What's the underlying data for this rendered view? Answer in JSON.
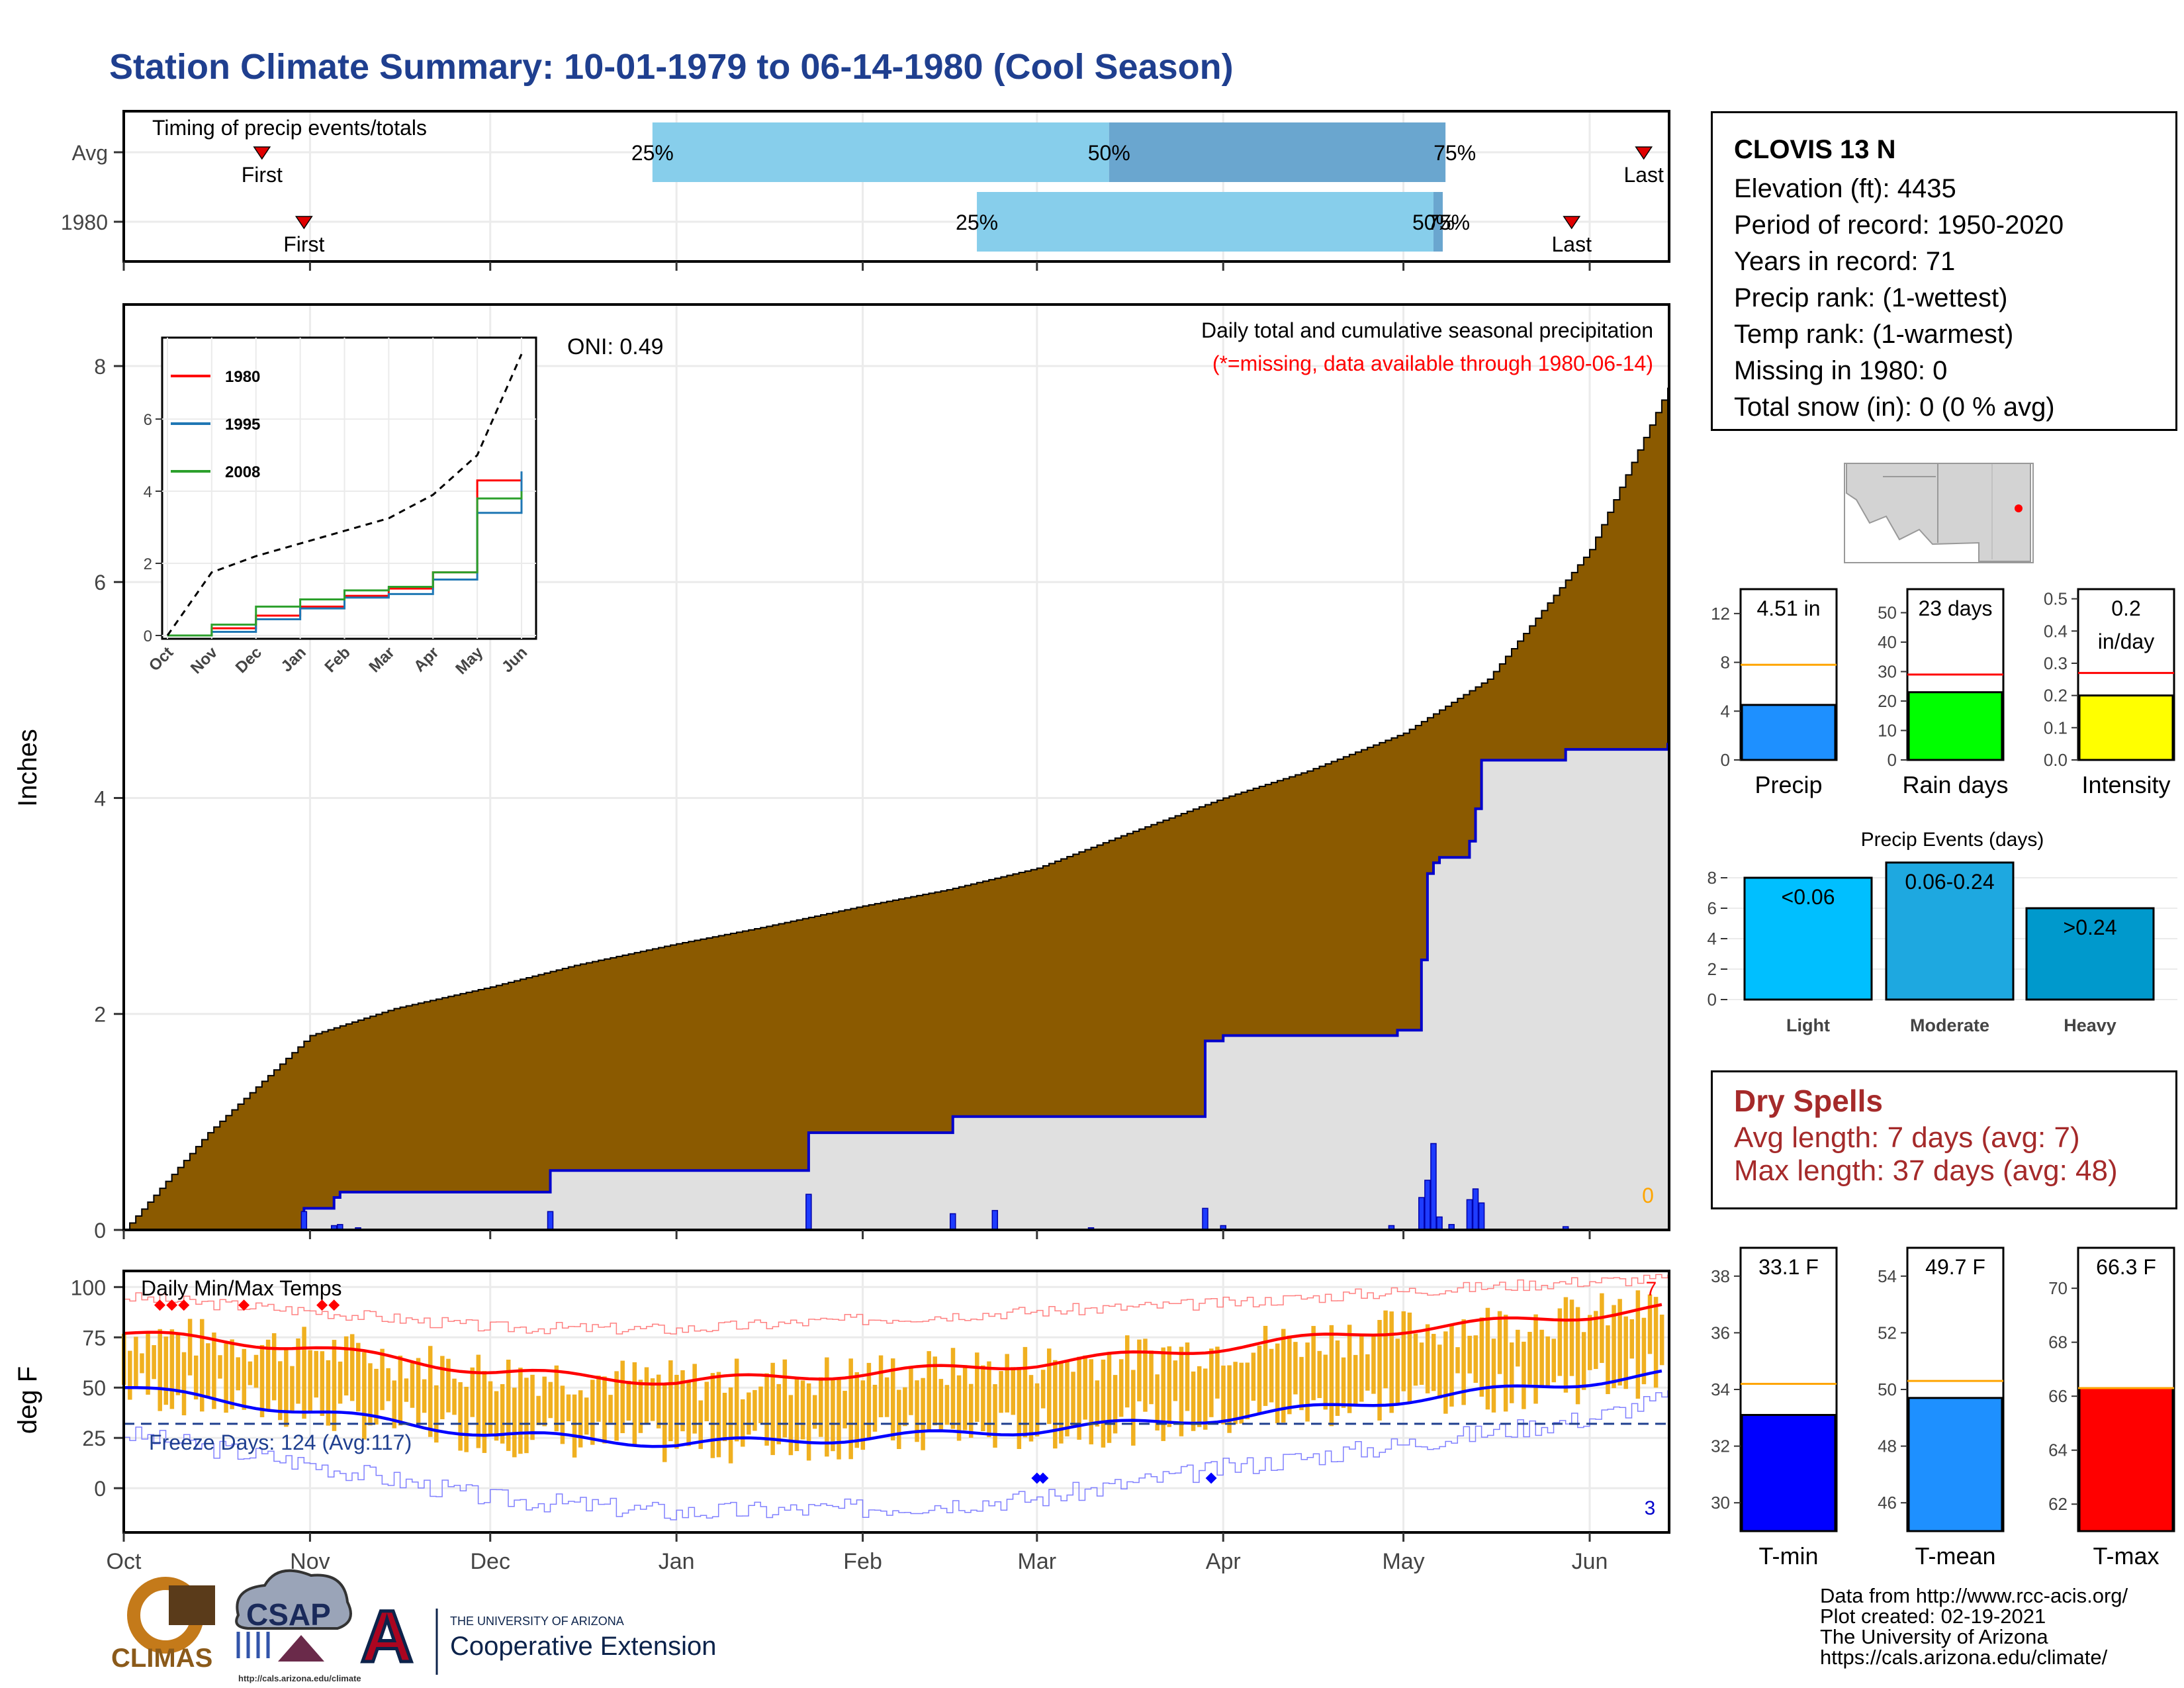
{
  "title": "Station Climate Summary: 10-01-1979 to 06-14-1980 (Cool Season)",
  "station": {
    "name": "CLOVIS 13 N",
    "lines": [
      "Elevation (ft): 4435",
      "Period of record: 1950-2020",
      "Years in record: 71",
      "Precip rank:  (1-wettest)",
      "Temp rank:  (1-warmest)",
      "Missing in 1980: 0",
      "Total snow (in): 0 (0 % avg)"
    ]
  },
  "timing_panel": {
    "label": "Timing of precip events/totals",
    "rows": [
      {
        "name": "Avg",
        "first": "First",
        "last": "Last",
        "p25": "25%",
        "p50": "50%",
        "p75": "75%"
      },
      {
        "name": "1980",
        "first": "First",
        "last": "Last",
        "p25": "25%",
        "p50": "50%",
        "p75": "75%"
      }
    ]
  },
  "main_panel": {
    "ylabel": "Inches",
    "subtitle": "Daily total and cumulative seasonal precipitation",
    "missing_note": "(*=missing, data available through 1980-06-14)",
    "oni": "ONI: 0.49",
    "zero_label": "0"
  },
  "inset": {
    "legend": [
      "1980",
      "1995",
      "2008"
    ],
    "yticks": [
      "0",
      "2",
      "4",
      "6"
    ],
    "xticks": [
      "Oct",
      "Nov",
      "Dec",
      "Jan",
      "Feb",
      "Mar",
      "Apr",
      "May",
      "Jun"
    ]
  },
  "temp_panel": {
    "ylabel": "deg F",
    "label": "Daily Min/Max Temps",
    "freeze": "Freeze Days: 124 (Avg:117)",
    "count_hot": "7",
    "count_cold": "3",
    "yticks": [
      "0",
      "25",
      "50",
      "75",
      "100"
    ]
  },
  "months": [
    "Oct",
    "Nov",
    "Dec",
    "Jan",
    "Feb",
    "Mar",
    "Apr",
    "May",
    "Jun"
  ],
  "precip_event_title": "Precip Events (days)",
  "dry_spells": {
    "title": "Dry Spells",
    "avg": "Avg length: 7 days (avg: 7)",
    "max": "Max length: 37 days (avg: 48)"
  },
  "credits": [
    "Data from http://www.rcc-acis.org/",
    "Plot created: 02-19-2021",
    "The University of Arizona",
    "https://cals.arizona.edu/climate/"
  ],
  "logos": {
    "climas": "CLIMAS",
    "csap": "CSAP",
    "csap_url": "http://cals.arizona.edu/climate",
    "ua_small": "THE UNIVERSITY OF ARIZONA",
    "ua_big": "Cooperative Extension",
    "ua_letter": "A"
  },
  "colors": {
    "title": "#1f3f8f",
    "cumulative_avg": "#8b5a00",
    "cumulative_year": "#0000cc",
    "bar_fill": "#87ceeb",
    "bar_mid": "#6aa6cf",
    "temp_range": "#f0b020",
    "tmax_line": "#ff0000",
    "tmin_line": "#0000ff",
    "precip_bar": "#1e90ff",
    "raindays_bar": "#00ff00",
    "intensity_bar": "#ffff00",
    "tmin_bar": "#0000ff",
    "tmean_bar": "#1e90ff",
    "tmax_bar": "#ff0000"
  },
  "chart_data": [
    {
      "type": "bar",
      "name": "timing",
      "rows": [
        {
          "name": "Avg",
          "first": "1979-10-24",
          "p25": "1979-12-28",
          "p50": "1980-03-13",
          "p75": "1980-05-08",
          "last": "1980-06-10"
        },
        {
          "name": "1980",
          "first": "1979-10-31",
          "p25": "1980-02-20",
          "p50": "1980-05-06",
          "p75": "1980-05-07",
          "last": "1980-05-29"
        }
      ]
    },
    {
      "type": "area",
      "name": "cumulative",
      "ylabel": "Inches",
      "ylim": [
        0,
        8.5
      ],
      "yticks": [
        0,
        2,
        4,
        6,
        8
      ],
      "avg_cumulative": {
        "x": [
          "1979-10-01",
          "1979-10-15",
          "1979-11-01",
          "1979-11-15",
          "1979-12-01",
          "1979-12-15",
          "1980-01-01",
          "1980-01-15",
          "1980-02-01",
          "1980-02-15",
          "1980-03-01",
          "1980-03-15",
          "1980-04-01",
          "1980-04-15",
          "1980-05-01",
          "1980-05-15",
          "1980-06-01",
          "1980-06-14"
        ],
        "y": [
          0.0,
          0.9,
          1.8,
          2.05,
          2.25,
          2.45,
          2.65,
          2.8,
          3.0,
          3.15,
          3.35,
          3.65,
          4.0,
          4.25,
          4.6,
          5.1,
          6.3,
          7.8
        ]
      },
      "year_cumulative": {
        "x": [
          "1979-10-01",
          "1979-10-31",
          "1979-11-05",
          "1979-11-06",
          "1979-12-11",
          "1980-01-23",
          "1980-02-16",
          "1980-02-23",
          "1980-03-29",
          "1980-04-01",
          "1980-04-30",
          "1980-05-04",
          "1980-05-05",
          "1980-05-06",
          "1980-05-07",
          "1980-05-12",
          "1980-05-13",
          "1980-05-14",
          "1980-05-28",
          "1980-06-14"
        ],
        "y": [
          0.0,
          0.2,
          0.3,
          0.35,
          0.55,
          0.9,
          1.05,
          1.05,
          1.75,
          1.8,
          1.85,
          2.5,
          3.3,
          3.4,
          3.45,
          3.6,
          3.9,
          4.35,
          4.45,
          4.51
        ]
      },
      "daily_precip": {
        "x": [
          "1979-10-31",
          "1979-11-05",
          "1979-11-06",
          "1979-11-09",
          "1979-12-11",
          "1980-01-23",
          "1980-02-16",
          "1980-02-23",
          "1980-03-10",
          "1980-03-29",
          "1980-04-01",
          "1980-04-29",
          "1980-05-04",
          "1980-05-05",
          "1980-05-06",
          "1980-05-07",
          "1980-05-09",
          "1980-05-12",
          "1980-05-13",
          "1980-05-14",
          "1980-05-28"
        ],
        "y": [
          0.17,
          0.04,
          0.05,
          0.02,
          0.17,
          0.33,
          0.15,
          0.18,
          0.02,
          0.2,
          0.04,
          0.04,
          0.3,
          0.46,
          0.8,
          0.12,
          0.05,
          0.28,
          0.38,
          0.25,
          0.03
        ]
      }
    },
    {
      "type": "line",
      "name": "inset_cumulative",
      "legend": [
        "1980",
        "1995",
        "2008"
      ],
      "ylim": [
        0,
        7.8
      ],
      "x": [
        "Oct",
        "Nov",
        "Dec",
        "Jan",
        "Feb",
        "Mar",
        "Apr",
        "May",
        "Jun"
      ],
      "series": [
        {
          "name": "1980",
          "values": [
            0.0,
            0.2,
            0.55,
            0.8,
            1.1,
            1.3,
            1.75,
            4.3,
            4.51
          ]
        },
        {
          "name": "1995",
          "values": [
            0.0,
            0.1,
            0.45,
            0.75,
            1.05,
            1.15,
            1.55,
            3.4,
            4.55
          ]
        },
        {
          "name": "2008",
          "values": [
            0.0,
            0.3,
            0.8,
            1.0,
            1.25,
            1.35,
            1.75,
            3.8,
            4.0
          ]
        }
      ],
      "avg": [
        0.0,
        1.75,
        2.2,
        2.55,
        2.9,
        3.25,
        3.9,
        5.0,
        7.8
      ]
    },
    {
      "type": "line",
      "name": "daily_temps",
      "ylabel": "deg F",
      "ylim": [
        -20,
        105
      ],
      "yticks": [
        0,
        25,
        50,
        75,
        100
      ],
      "x": [
        "1979-10-01",
        "1979-11-01",
        "1979-12-01",
        "1980-01-01",
        "1980-02-01",
        "1980-03-01",
        "1980-04-01",
        "1980-05-01",
        "1980-06-01",
        "1980-06-14"
      ],
      "series": [
        {
          "name": "avg_tmax",
          "values": [
            77,
            70,
            58,
            53,
            57,
            62,
            70,
            79,
            86,
            90
          ]
        },
        {
          "name": "avg_tmin",
          "values": [
            50,
            38,
            27,
            22,
            25,
            29,
            35,
            44,
            53,
            57
          ]
        },
        {
          "name": "record_max",
          "values": [
            95,
            88,
            80,
            79,
            84,
            88,
            92,
            98,
            103,
            104
          ]
        },
        {
          "name": "record_min",
          "values": [
            27,
            12,
            -5,
            -12,
            -10,
            -5,
            10,
            22,
            35,
            45
          ]
        }
      ],
      "freeze_threshold": 32
    },
    {
      "type": "bar",
      "name": "precip_summary",
      "categories": [
        "Precip",
        "Rain days",
        "Intensity"
      ],
      "values": [
        4.51,
        23,
        0.2
      ],
      "averages": [
        7.8,
        29,
        0.27
      ],
      "labels": [
        "4.51 in",
        "23 days",
        "0.2 in/day"
      ],
      "ylims": [
        [
          0,
          14
        ],
        [
          0,
          58
        ],
        [
          0,
          0.53
        ]
      ],
      "yticks": [
        [
          "0",
          "4",
          "8",
          "12"
        ],
        [
          "0",
          "10",
          "20",
          "30",
          "40",
          "50"
        ],
        [
          "0.0",
          "0.1",
          "0.2",
          "0.3",
          "0.4",
          "0.5"
        ]
      ]
    },
    {
      "type": "bar",
      "name": "precip_events",
      "title": "Precip Events (days)",
      "categories": [
        "Light",
        "Moderate",
        "Heavy"
      ],
      "values": [
        8,
        9,
        6
      ],
      "labels": [
        "<0.06",
        "0.06-0.24",
        ">0.24"
      ],
      "yticks": [
        "0",
        "2",
        "4",
        "6",
        "8"
      ],
      "ylim": [
        0,
        9
      ]
    },
    {
      "type": "bar",
      "name": "temp_summary",
      "categories": [
        "T-min",
        "T-mean",
        "T-max"
      ],
      "values": [
        33.1,
        49.7,
        66.3
      ],
      "averages": [
        34.2,
        50.3,
        66.3
      ],
      "labels": [
        "33.1 F",
        "49.7 F",
        "66.3 F"
      ],
      "ylims": [
        [
          29,
          39
        ],
        [
          45,
          55
        ],
        [
          61,
          71.5
        ]
      ],
      "yticks": [
        [
          "30",
          "32",
          "34",
          "36",
          "38"
        ],
        [
          "46",
          "48",
          "50",
          "52",
          "54"
        ],
        [
          "62",
          "64",
          "66",
          "68",
          "70"
        ]
      ]
    }
  ]
}
